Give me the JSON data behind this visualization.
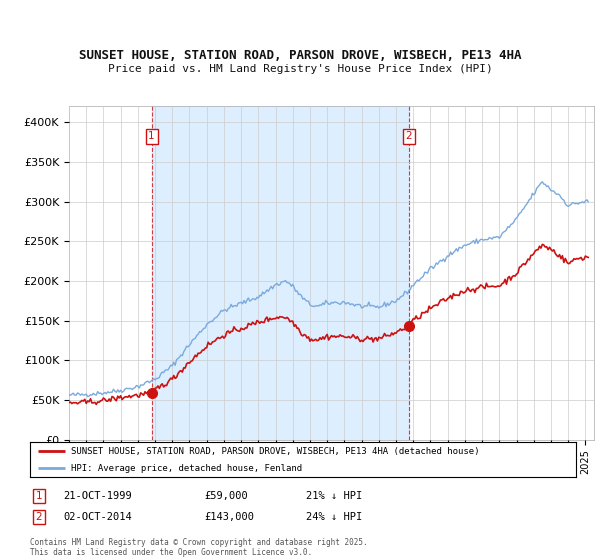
{
  "title1": "SUNSET HOUSE, STATION ROAD, PARSON DROVE, WISBECH, PE13 4HA",
  "title2": "Price paid vs. HM Land Registry's House Price Index (HPI)",
  "ylabel_ticks": [
    "£0",
    "£50K",
    "£100K",
    "£150K",
    "£200K",
    "£250K",
    "£300K",
    "£350K",
    "£400K"
  ],
  "ylabel_values": [
    0,
    50000,
    100000,
    150000,
    200000,
    250000,
    300000,
    350000,
    400000
  ],
  "ylim": [
    0,
    420000
  ],
  "xlim_start": 1995.0,
  "xlim_end": 2025.5,
  "hpi_color": "#7aaadd",
  "property_color": "#cc1111",
  "shade_color": "#ddeeff",
  "sale1_x": 1999.8,
  "sale1_y": 59000,
  "sale2_x": 2014.75,
  "sale2_y": 143000,
  "legend_property": "SUNSET HOUSE, STATION ROAD, PARSON DROVE, WISBECH, PE13 4HA (detached house)",
  "legend_hpi": "HPI: Average price, detached house, Fenland",
  "sale1_date": "21-OCT-1999",
  "sale1_price": "£59,000",
  "sale1_hpi": "21% ↓ HPI",
  "sale2_date": "02-OCT-2014",
  "sale2_price": "£143,000",
  "sale2_hpi": "24% ↓ HPI",
  "footer": "Contains HM Land Registry data © Crown copyright and database right 2025.\nThis data is licensed under the Open Government Licence v3.0.",
  "background_color": "#ffffff",
  "grid_color": "#cccccc",
  "hpi_anchors": {
    "1995.0": 56000,
    "1996.0": 57000,
    "1997.0": 59000,
    "1998.0": 62000,
    "1999.0": 67000,
    "2000.0": 76000,
    "2001.0": 93000,
    "2002.0": 120000,
    "2003.0": 145000,
    "2004.0": 163000,
    "2005.0": 172000,
    "2006.0": 180000,
    "2007.0": 195000,
    "2007.6": 200000,
    "2008.0": 193000,
    "2008.5": 180000,
    "2009.0": 170000,
    "2009.5": 168000,
    "2010.0": 172000,
    "2011.0": 173000,
    "2012.0": 168000,
    "2013.0": 167000,
    "2014.0": 175000,
    "2014.75": 188000,
    "2015.0": 195000,
    "2016.0": 215000,
    "2017.0": 232000,
    "2018.0": 245000,
    "2019.0": 252000,
    "2020.0": 255000,
    "2021.0": 278000,
    "2022.0": 310000,
    "2022.5": 325000,
    "2023.0": 315000,
    "2023.5": 308000,
    "2024.0": 295000,
    "2024.5": 298000,
    "2025.0": 300000
  },
  "prop_anchors": {
    "1995.0": 46000,
    "1996.0": 47000,
    "1997.0": 49000,
    "1998.0": 53000,
    "1999.0": 56000,
    "1999.8": 59000,
    "2000.0": 63000,
    "2001.0": 76000,
    "2002.0": 98000,
    "2003.0": 118000,
    "2004.0": 132000,
    "2005.0": 140000,
    "2006.0": 148000,
    "2007.0": 154000,
    "2007.5": 155000,
    "2008.0": 148000,
    "2008.5": 135000,
    "2009.0": 127000,
    "2009.5": 126000,
    "2010.0": 130000,
    "2011.0": 130000,
    "2012.0": 127000,
    "2013.0": 127000,
    "2014.0": 135000,
    "2014.75": 143000,
    "2015.0": 150000,
    "2016.0": 165000,
    "2017.0": 178000,
    "2018.0": 188000,
    "2019.0": 192000,
    "2020.0": 194000,
    "2021.0": 210000,
    "2022.0": 235000,
    "2022.5": 245000,
    "2023.0": 240000,
    "2023.5": 232000,
    "2024.0": 222000,
    "2024.5": 228000,
    "2025.0": 230000
  }
}
